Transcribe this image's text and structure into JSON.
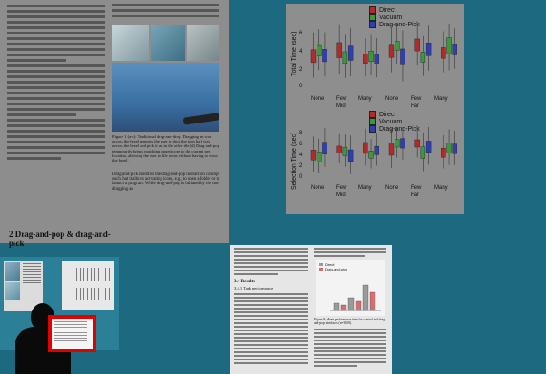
{
  "left_paper": {
    "section_heading": "2   Drag-and-pop & drag-and-pick",
    "figure_caption": "Figure 1 (a-c): Traditional drag-and-drop. Dragging an icon across the bezel requires the user to drop the icon half way across the bezel and pick it up in the other tile (d) Drag-and-pop temporarily brings matching target icons to the current pen location, allowing the user to file icons without having to cross the bezel.",
    "col2_after": "Drag-and-pick modifies the drag-and-pop interaction concept such that it allows activating icons, e.g., to open a folder or to launch a program. While drag-and-pop is initiated by the user dragging an"
  },
  "chart_panel": {
    "legend": [
      {
        "label": "Direct",
        "color": "#b22b2b"
      },
      {
        "label": "Vacuum",
        "color": "#3a9a3a"
      },
      {
        "label": "Drag-and-Pick",
        "color": "#2f3fae"
      }
    ],
    "ylabel_top": "Total Time (sec)",
    "ylabel_bottom": "Selection Time (sec)",
    "top_yticks": [
      "6",
      "4",
      "2",
      "0"
    ],
    "bottom_yticks": [
      "8",
      "6",
      "4",
      "2",
      "0"
    ],
    "top_categories": [
      {
        "l1": "None",
        "l2": ""
      },
      {
        "l1": "Few",
        "l2": "Mid"
      },
      {
        "l1": "Many",
        "l2": ""
      },
      {
        "l1": "None",
        "l2": ""
      },
      {
        "l1": "Few",
        "l2": "Far"
      },
      {
        "l1": "Many",
        "l2": ""
      }
    ],
    "bottom_categories": [
      {
        "l1": "None",
        "l2": ""
      },
      {
        "l1": "Few",
        "l2": "Mid"
      },
      {
        "l1": "Many",
        "l2": ""
      },
      {
        "l1": "None",
        "l2": ""
      },
      {
        "l1": "Few",
        "l2": "Far"
      },
      {
        "l1": "Many",
        "l2": ""
      }
    ]
  },
  "right_paper": {
    "heading_results": "3.4   Results",
    "heading_sub": "3.4.1   Task performance",
    "chart_legend": [
      "Direct",
      "Drag-and-pick"
    ],
    "chart_caption": "Figure 9: Mean performance time for control and drag-and-pop interfaces (n=3000)."
  },
  "colors": {
    "desktop": "#1d6a80",
    "page": "#8a8a8a",
    "strip": "#2b7f96",
    "highlight": "#e00000"
  }
}
